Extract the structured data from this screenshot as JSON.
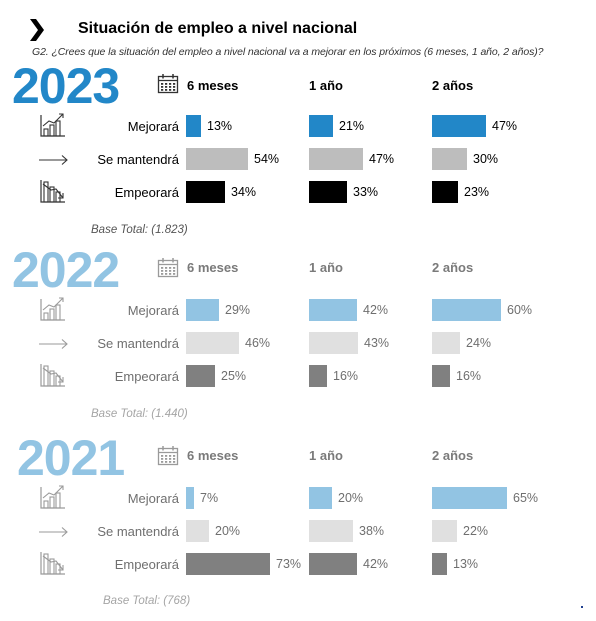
{
  "header": {
    "title": "Situación de empleo a nivel nacional",
    "subtitle": "G2. ¿Crees que la situación del empleo a nivel nacional va a mejorar en los próximos (6 meses, 1 año, 2 años)?"
  },
  "icons": {
    "calendar": "calendar-icon",
    "improve": "chart-up-icon",
    "same": "arrow-right-icon",
    "worse": "chart-down-icon"
  },
  "colors": {
    "y2023_improve": "#2287c8",
    "y2023_same": "#bdbdbd",
    "y2023_worse": "#000000",
    "faded_improve": "#92c4e3",
    "faded_same": "#e0e0e0",
    "faded_worse": "#808080",
    "y2023_year": "#2287c8",
    "faded_year": "#92c4e3"
  },
  "chart_data": {
    "type": "bar",
    "periods": [
      "6 meses",
      "1 año",
      "2 años"
    ],
    "categories": [
      "Mejorará",
      "Se mantendrá",
      "Empeorará"
    ],
    "years": [
      {
        "year": "2023",
        "base": "Base Total: (1.823)",
        "series": [
          {
            "name": "6 meses",
            "values": [
              13,
              54,
              34
            ]
          },
          {
            "name": "1 año",
            "values": [
              21,
              47,
              33
            ]
          },
          {
            "name": "2 años",
            "values": [
              47,
              30,
              23
            ]
          }
        ]
      },
      {
        "year": "2022",
        "base": "Base Total: (1.440)",
        "series": [
          {
            "name": "6 meses",
            "values": [
              29,
              46,
              25
            ]
          },
          {
            "name": "1 año",
            "values": [
              42,
              43,
              16
            ]
          },
          {
            "name": "2 años",
            "values": [
              60,
              24,
              16
            ]
          }
        ]
      },
      {
        "year": "2021",
        "base": "Base Total: (768)",
        "series": [
          {
            "name": "6 meses",
            "values": [
              7,
              20,
              73
            ]
          },
          {
            "name": "1 año",
            "values": [
              20,
              38,
              42
            ]
          },
          {
            "name": "2 años",
            "values": [
              65,
              22,
              13
            ]
          }
        ]
      }
    ]
  }
}
